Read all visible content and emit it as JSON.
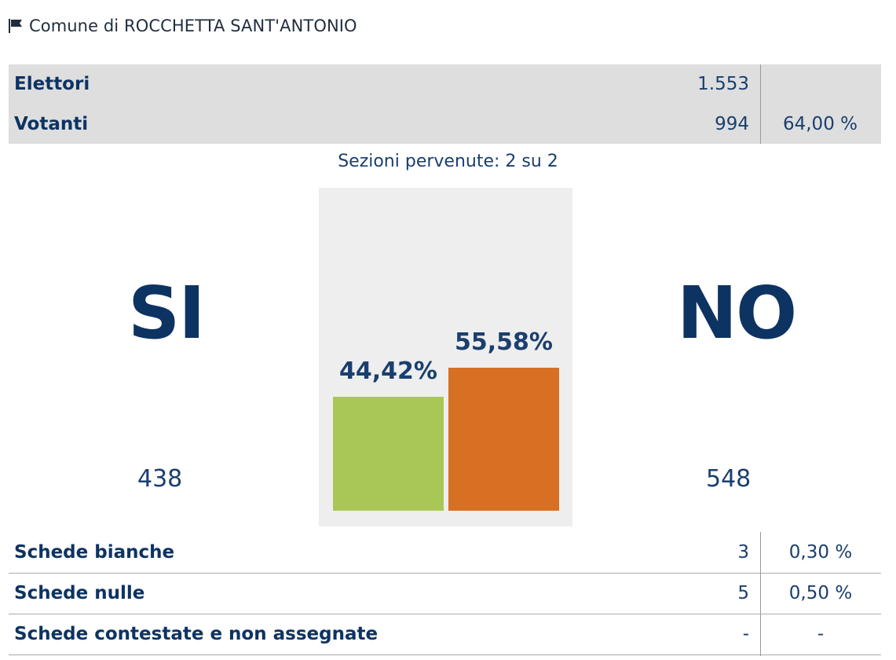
{
  "header": {
    "icon": "flag-icon",
    "title": "Comune di ROCCHETTA SANT'ANTONIO"
  },
  "turnout": {
    "rows": [
      {
        "label": "Elettori",
        "value": "1.553",
        "pct": ""
      },
      {
        "label": "Votanti",
        "value": "994",
        "pct": "64,00 %"
      }
    ]
  },
  "sezioni": "Sezioni pervenute: 2 su 2",
  "chart_data": {
    "type": "bar",
    "categories": [
      "SI",
      "NO"
    ],
    "values": [
      44.42,
      55.58
    ],
    "value_labels": [
      "44,42%",
      "55,58%"
    ],
    "colors": [
      "#a9c757",
      "#d77022"
    ]
  },
  "results": {
    "si": {
      "label": "SI",
      "votes": "438"
    },
    "no": {
      "label": "NO",
      "votes": "548"
    }
  },
  "schede": {
    "rows": [
      {
        "label": "Schede bianche",
        "value": "3",
        "pct": "0,30 %"
      },
      {
        "label": "Schede nulle",
        "value": "5",
        "pct": "0,50 %"
      },
      {
        "label": "Schede contestate e non assegnate",
        "value": "-",
        "pct": "-"
      }
    ]
  }
}
